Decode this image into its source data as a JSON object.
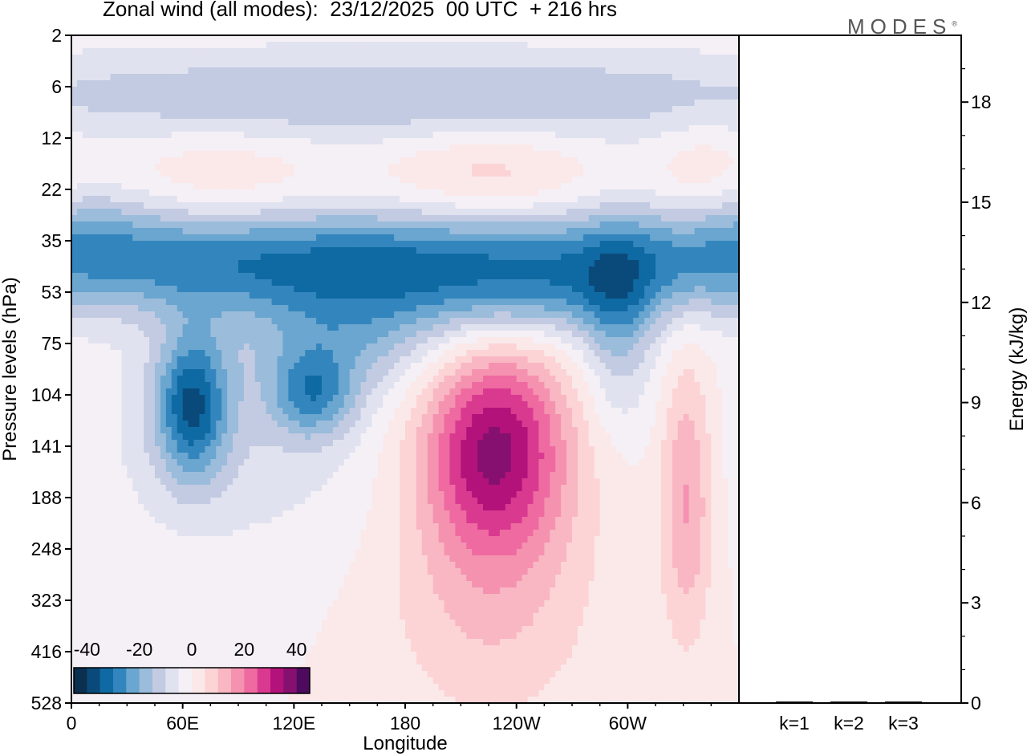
{
  "header": {
    "title": "Zonal wind (all modes):  23/12/2025  00 UTC  + 216 hrs",
    "logo": "MODES",
    "logo_mark": "®"
  },
  "colors": {
    "scale": [
      "#0b2f4f",
      "#0a4a7a",
      "#0f6aa3",
      "#3386bd",
      "#6aa6cf",
      "#9bbcdb",
      "#c3cbe2",
      "#e1e2ef",
      "#f4f0f6",
      "#fbe9ea",
      "#fcd4d6",
      "#f8b7c3",
      "#f592b0",
      "#ee6aa0",
      "#d93a90",
      "#b3127a",
      "#861070",
      "#4e0a5e"
    ]
  },
  "chart_data": [
    {
      "type": "heatmap",
      "title": "Zonal wind (all modes):  23/12/2025  00 UTC  + 216 hrs",
      "xlabel": "Longitude",
      "ylabel": "Pressure levels (hPa)",
      "x_ticks": [
        "0",
        "60E",
        "120E",
        "180",
        "120W",
        "60W"
      ],
      "x_tick_lon": [
        0,
        60,
        120,
        180,
        240,
        300
      ],
      "xlim": [
        0,
        360
      ],
      "y_ticks": [
        "2",
        "6",
        "12",
        "22",
        "35",
        "53",
        "75",
        "104",
        "141",
        "188",
        "248",
        "323",
        "416",
        "528"
      ],
      "colorbar": {
        "levels": [
          -40,
          -35,
          -30,
          -25,
          -20,
          -15,
          -10,
          -5,
          0,
          5,
          10,
          15,
          20,
          25,
          30,
          35,
          40
        ],
        "tick_labels": [
          "-40",
          "-20",
          "0",
          "20",
          "40"
        ],
        "tick_values": [
          -40,
          -20,
          0,
          20,
          40
        ]
      },
      "features": [
        {
          "lon": 175,
          "level": 1.2,
          "value": -15,
          "sx": 220,
          "sy": 0.7
        },
        {
          "lon": 80,
          "level": 2.7,
          "value": 6,
          "sx": 40,
          "sy": 0.7
        },
        {
          "lon": 225,
          "level": 2.7,
          "value": 9,
          "sx": 38,
          "sy": 0.7
        },
        {
          "lon": 340,
          "level": 2.7,
          "value": 6,
          "sx": 18,
          "sy": 0.8
        },
        {
          "lon": 180,
          "level": 4.4,
          "value": -30,
          "sx": 230,
          "sy": 0.75
        },
        {
          "lon": 5,
          "level": 3.7,
          "value": -8,
          "sx": 30,
          "sy": 0.7
        },
        {
          "lon": 150,
          "level": 5.9,
          "value": -14,
          "sx": 40,
          "sy": 0.8
        },
        {
          "lon": 295,
          "level": 5.7,
          "value": -14,
          "sx": 14,
          "sy": 1.3
        },
        {
          "lon": 245,
          "level": 5.3,
          "value": -10,
          "sx": 50,
          "sy": 0.6
        },
        {
          "lon": 65,
          "level": 7.2,
          "value": -30,
          "sx": 14,
          "sy": 1.0
        },
        {
          "lon": 130,
          "level": 7.0,
          "value": -20,
          "sx": 16,
          "sy": 0.6
        },
        {
          "lon": 90,
          "level": 7.8,
          "value": -8,
          "sx": 60,
          "sy": 1.8
        },
        {
          "lon": 228,
          "level": 8.0,
          "value": 35,
          "sx": 28,
          "sy": 1.45
        },
        {
          "lon": 226,
          "level": 11.0,
          "value": 10,
          "sx": 40,
          "sy": 1.8
        },
        {
          "lon": 332,
          "level": 9.0,
          "value": 16,
          "sx": 10,
          "sy": 1.9
        }
      ]
    },
    {
      "type": "bar",
      "categories": [
        "k=1",
        "k=2",
        "k=3"
      ],
      "values": [
        0.02,
        0.02,
        0.02
      ],
      "ylabel": "Energy (kJ/kg)",
      "ylim": [
        0,
        20
      ],
      "y_ticks": [
        "0",
        "3",
        "6",
        "9",
        "12",
        "15",
        "18"
      ]
    }
  ]
}
